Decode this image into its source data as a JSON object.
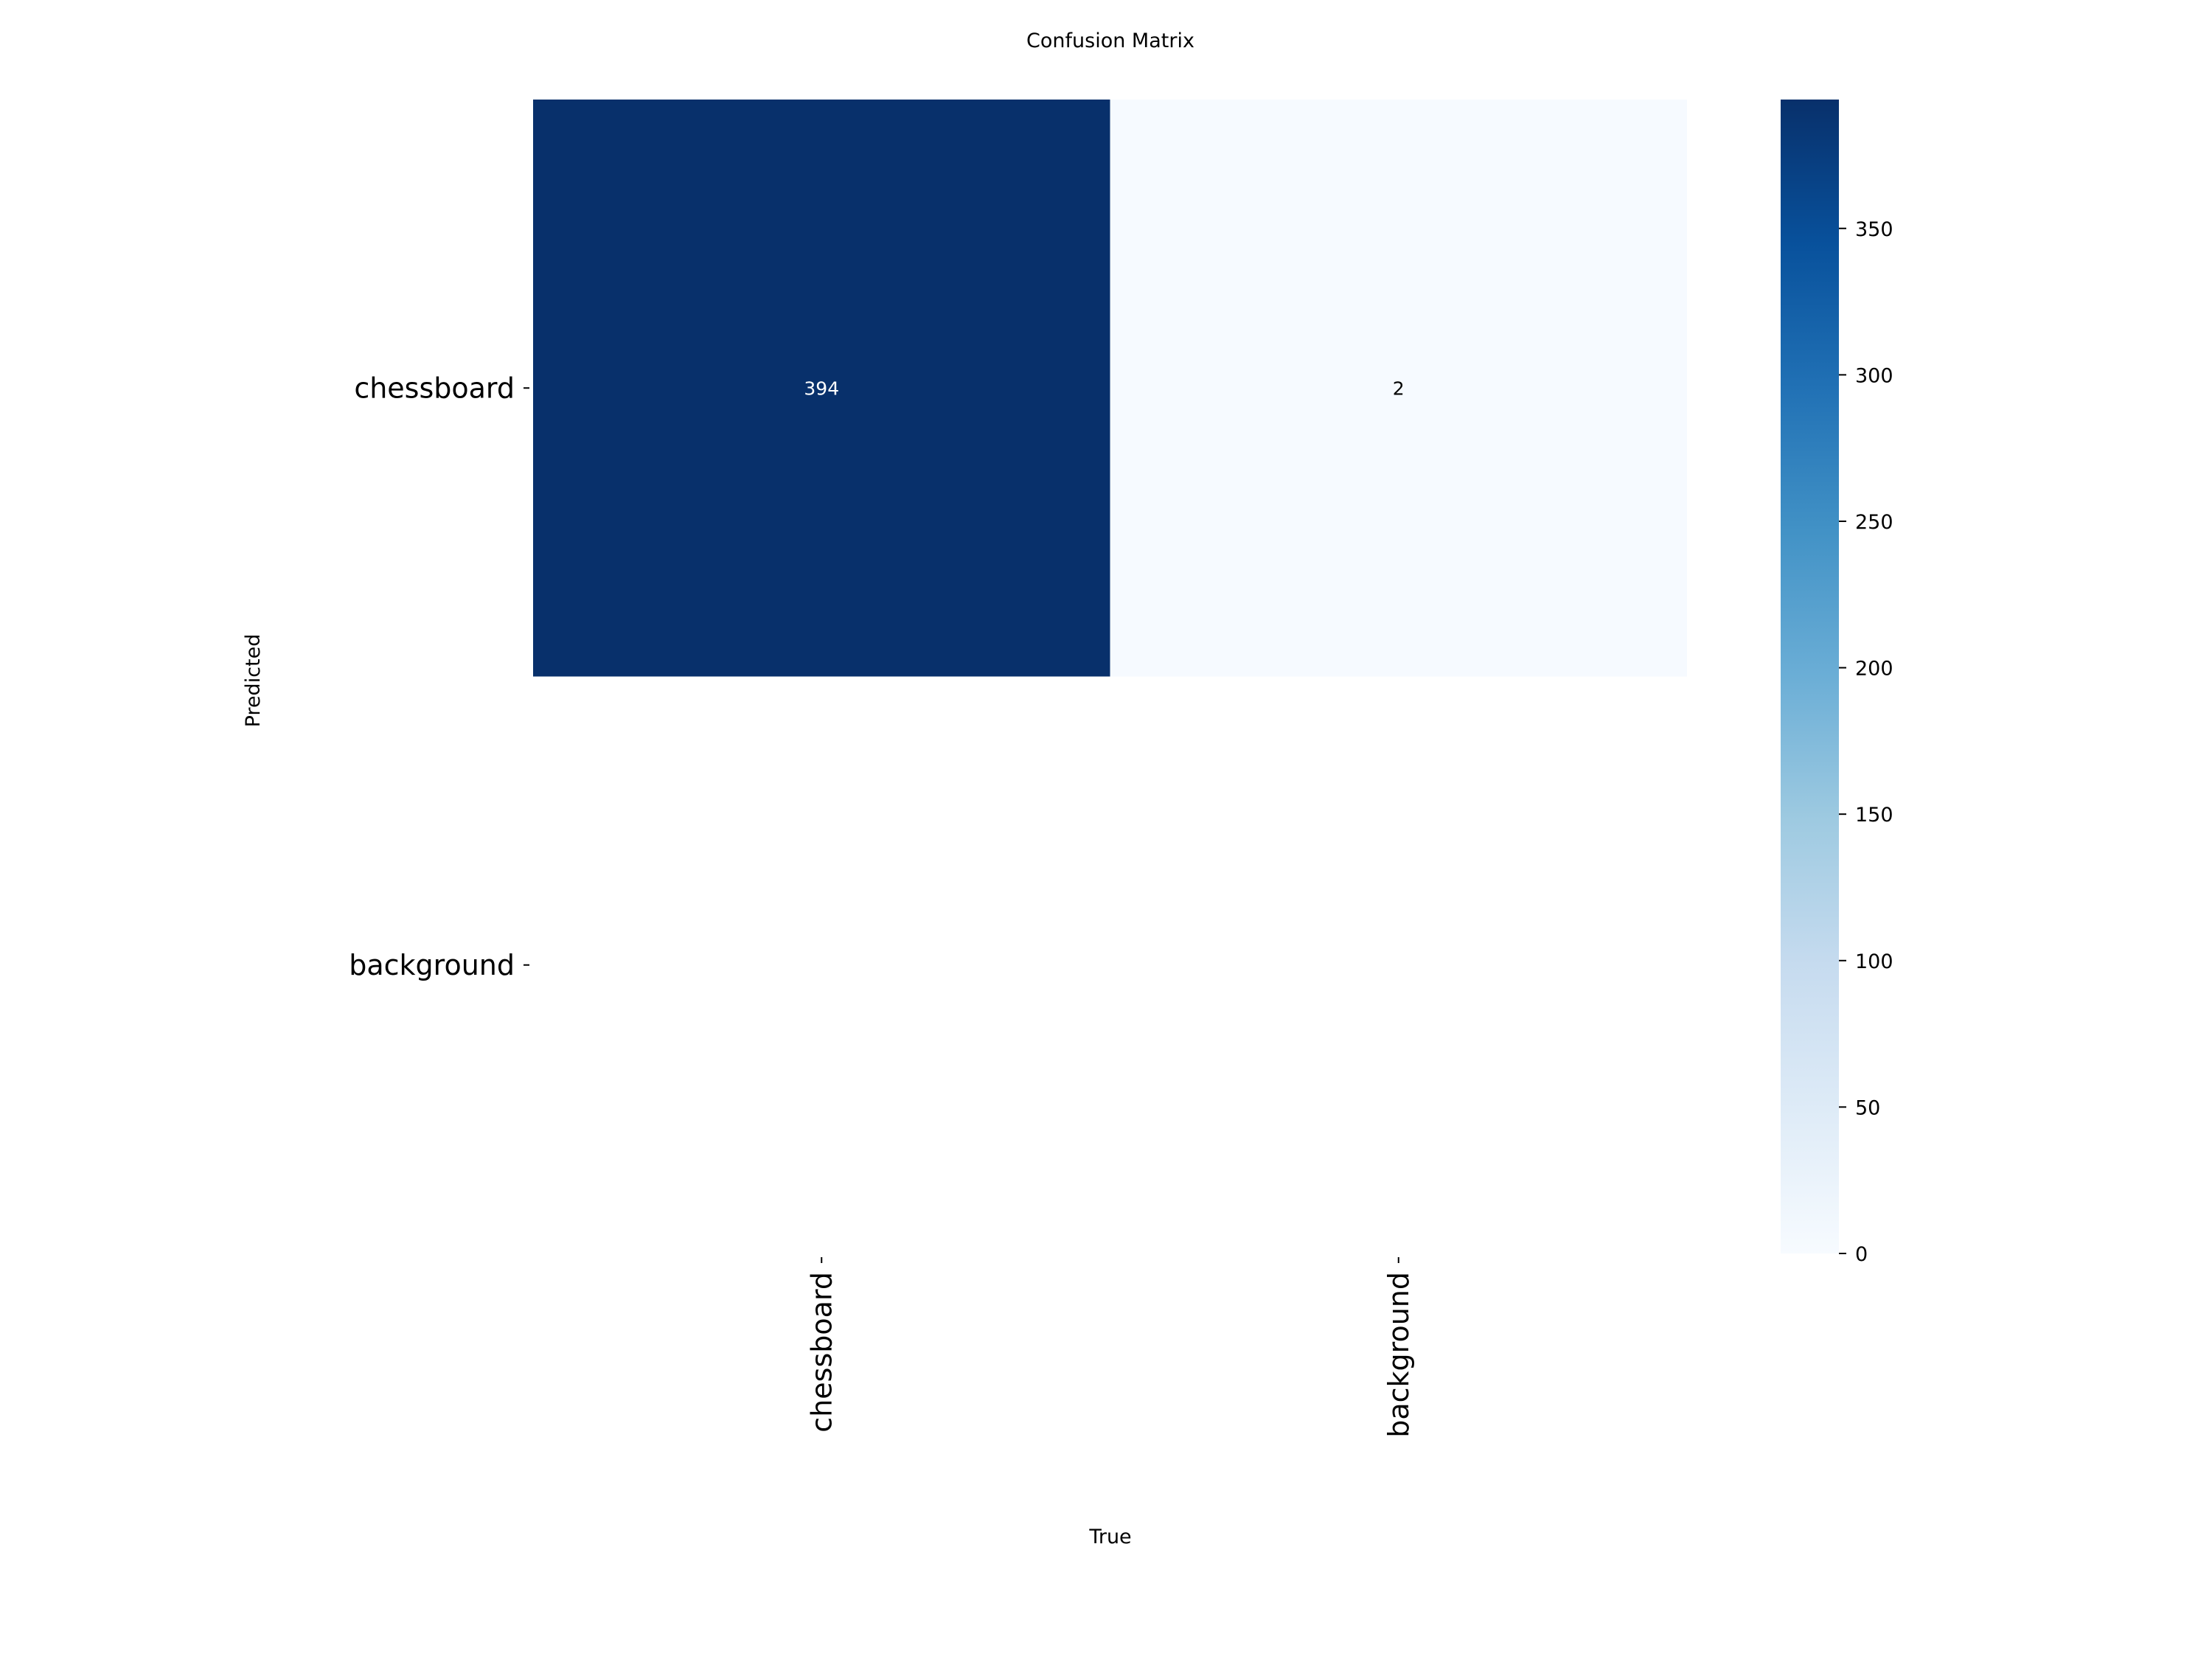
{
  "chart_data": {
    "type": "heatmap",
    "title": "Confusion Matrix",
    "xlabel": "True",
    "ylabel": "Predicted",
    "x_categories": [
      "chessboard",
      "background"
    ],
    "y_categories": [
      "chessboard",
      "background"
    ],
    "values": [
      [
        394,
        2
      ],
      [
        null,
        null
      ]
    ],
    "annotations": [
      [
        "394",
        "2"
      ],
      [
        "",
        ""
      ]
    ],
    "colormap": "Blues",
    "colormap_stops": [
      "#f7fbff",
      "#deebf7",
      "#c6dbef",
      "#9ecae1",
      "#6baed6",
      "#4292c6",
      "#2171b5",
      "#08519c",
      "#08306b"
    ],
    "vmin": 0,
    "vmax": 394,
    "colorbar_ticks": [
      0,
      50,
      100,
      150,
      200,
      250,
      300,
      350
    ],
    "colorbar_tick_labels": [
      "0",
      "50",
      "100",
      "150",
      "200",
      "250",
      "300",
      "350"
    ],
    "grid": false
  }
}
